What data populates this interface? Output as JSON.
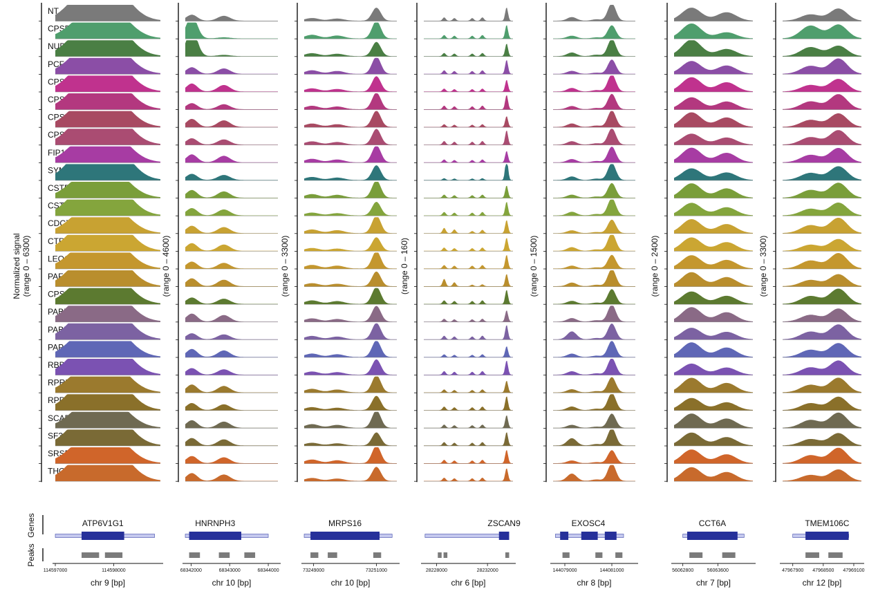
{
  "chart_data": {
    "type": "area",
    "y_label_prefix": "Normalized signal",
    "side_labels": {
      "peaks": "Peaks",
      "genes": "Genes"
    },
    "tracks": [
      {
        "name": "NT",
        "color": "#7a7a7a"
      },
      {
        "name": "CPSF6",
        "color": "#4f9e6d"
      },
      {
        "name": "NUDT21",
        "color": "#4a7f44"
      },
      {
        "name": "PCF11",
        "color": "#8b4ea6"
      },
      {
        "name": "CPSF1",
        "color": "#c0328e"
      },
      {
        "name": "CPSF2",
        "color": "#b3387f"
      },
      {
        "name": "CPSF3",
        "color": "#a84a62"
      },
      {
        "name": "CPSF4",
        "color": "#aa4c72"
      },
      {
        "name": "FIP1L1",
        "color": "#a73ca3"
      },
      {
        "name": "SYMPK",
        "color": "#2e767a"
      },
      {
        "name": "CSTF1",
        "color": "#7a9e3a"
      },
      {
        "name": "CSTF3",
        "color": "#84a53d"
      },
      {
        "name": "CDC73",
        "color": "#c8a232"
      },
      {
        "name": "CTR9",
        "color": "#cba632"
      },
      {
        "name": "LEO1",
        "color": "#c4972e"
      },
      {
        "name": "PAF1",
        "color": "#b98e2d"
      },
      {
        "name": "CPSF3L",
        "color": "#5c7a30"
      },
      {
        "name": "PABPC1",
        "color": "#8a6a86"
      },
      {
        "name": "PABPN1",
        "color": "#7c62a2"
      },
      {
        "name": "PAPOLA",
        "color": "#5f67b6"
      },
      {
        "name": "RBBP6",
        "color": "#7b52b2"
      },
      {
        "name": "RPRD1A",
        "color": "#9b7a2e"
      },
      {
        "name": "RPRD1B",
        "color": "#8a702a"
      },
      {
        "name": "SCAF8",
        "color": "#6f6a52"
      },
      {
        "name": "SF3A1",
        "color": "#7a6a36"
      },
      {
        "name": "SRSF3",
        "color": "#d0652a"
      },
      {
        "name": "THOC5",
        "color": "#c86a2c"
      }
    ],
    "panels": [
      {
        "gene": "ATP6V1G1",
        "range": "(range 0 – 6300)",
        "chr": "chr 9 [bp]",
        "ticks": [
          {
            "v": 114597000,
            "label": "114597000"
          },
          {
            "v": 114598000,
            "label": "114598000"
          }
        ],
        "xlim": [
          114597000,
          114598800
        ],
        "peaks": [
          {
            "x": [
              114597450,
              114597700
            ],
            "h": 1.0,
            "w": 300
          },
          {
            "x": [
              114597850,
              114598050
            ],
            "h": 1.05,
            "w": 300
          }
        ],
        "intron": [
          114597000,
          114598700
        ],
        "exons": [
          [
            114597450,
            114598180
          ]
        ],
        "peak_boxes": [
          [
            114597450,
            114597750
          ],
          [
            114597850,
            114598150
          ]
        ],
        "weights": {
          "CPSF6": [
            0.9,
            1.05
          ],
          "NUDT21": [
            1.0,
            1.0
          ],
          "SYMPK": [
            1.1,
            1.1
          ],
          "THOC5": [
            1.0,
            1.0
          ]
        }
      },
      {
        "gene": "HNRNPH3",
        "range": "(range 0 – 4600)",
        "chr": "chr 10 [bp]",
        "ticks": [
          {
            "v": 68342000,
            "label": "68342000"
          },
          {
            "v": 68343000,
            "label": "68343000"
          },
          {
            "v": 68344000,
            "label": "68344000"
          }
        ],
        "xlim": [
          68341850,
          68344250
        ],
        "peaks": [
          {
            "x": [
              68342020
            ],
            "h": 0.55,
            "w": 140
          },
          {
            "x": [
              68342850
            ],
            "h": 0.45,
            "w": 160
          }
        ],
        "intron": [
          68341850,
          68344000
        ],
        "exons": [
          [
            68341950,
            68343300
          ]
        ],
        "peak_boxes": [
          [
            68341950,
            68342230
          ],
          [
            68342720,
            68343000
          ],
          [
            68343380,
            68343660
          ]
        ],
        "weights": {
          "CPSF6": [
            3.2,
            0.2
          ],
          "NUDT21": [
            3.4,
            0.2
          ],
          "SYMPK": [
            0.9,
            0.9
          ],
          "NT": [
            0.8,
            0.8
          ]
        }
      },
      {
        "gene": "MRPS16",
        "range": "(range 0 – 3300)",
        "chr": "chr 10 [bp]",
        "ticks": [
          {
            "v": 73249000,
            "label": "73249000"
          },
          {
            "v": 73251000,
            "label": "73251000"
          }
        ],
        "xlim": [
          73248700,
          73251650
        ],
        "peaks": [
          {
            "x": [
              73248950
            ],
            "h": 0.25,
            "w": 220
          },
          {
            "x": [
              73249750
            ],
            "h": 0.2,
            "w": 220
          },
          {
            "x": [
              73251000
            ],
            "h": 1.2,
            "w": 140
          }
        ],
        "intron": [
          73248700,
          73251500
        ],
        "exons": [
          [
            73248900,
            73251100
          ]
        ],
        "peak_boxes": [
          [
            73248900,
            73249150
          ],
          [
            73249450,
            73249750
          ],
          [
            73250900,
            73251150
          ]
        ],
        "weights": {}
      },
      {
        "gene": "ZSCAN9",
        "range": "(range 0 – 160)",
        "chr": "chr 6 [bp]",
        "ticks": [
          {
            "v": 28228000,
            "label": "28228000"
          },
          {
            "v": 28232000,
            "label": "28232000"
          }
        ],
        "xlim": [
          28227000,
          28234000
        ],
        "peaks": [
          {
            "x": [
              28228600
            ],
            "h": 0.25,
            "w": 120
          },
          {
            "x": [
              28229400
            ],
            "h": 0.2,
            "w": 120
          },
          {
            "x": [
              28230800
            ],
            "h": 0.2,
            "w": 120
          },
          {
            "x": [
              28231600
            ],
            "h": 0.25,
            "w": 120
          },
          {
            "x": [
              28233500
            ],
            "h": 1.0,
            "w": 110
          }
        ],
        "intron": [
          28227100,
          28233200
        ],
        "exons": [
          [
            28232900,
            28233700
          ]
        ],
        "peak_boxes": [
          [
            28228100,
            28228400
          ],
          [
            28228550,
            28228850
          ],
          [
            28233400,
            28233700
          ]
        ],
        "weights": {
          "SYMPK": [
            0.5,
            0.5,
            0.5,
            0.5,
            1.6
          ],
          "CDC73": [
            1.6,
            1.4,
            0.8,
            1.0,
            1.0
          ],
          "PAF1": [
            2.4,
            1.6,
            0.6,
            0.6,
            1.0
          ]
        }
      },
      {
        "gene": "EXOSC4",
        "range": "(range 0 – 1500)",
        "chr": "chr 8 [bp]",
        "ticks": [
          {
            "v": 144079000,
            "label": "144079000"
          },
          {
            "v": 144081000,
            "label": "144081000"
          }
        ],
        "xlim": [
          144078500,
          144082000
        ],
        "peaks": [
          {
            "x": [
              144079300
            ],
            "h": 0.25,
            "w": 200
          },
          {
            "x": [
              144080350
            ],
            "h": 0.1,
            "w": 200
          },
          {
            "x": [
              144081000
            ],
            "h": 1.2,
            "w": 170
          }
        ],
        "intron": [
          144078600,
          144081500
        ],
        "exons": [
          [
            144078800,
            144079150
          ],
          [
            144079700,
            144080400
          ],
          [
            144080700,
            144081200
          ]
        ],
        "peak_boxes": [
          [
            144078900,
            144079200
          ],
          [
            144080300,
            144080600
          ],
          [
            144081150,
            144081450
          ]
        ],
        "weights": {
          "PABPN1": [
            2.4,
            1.0,
            1.0
          ],
          "SF3A1": [
            2.0,
            1.0,
            1.0
          ],
          "THOC5": [
            2.0,
            1.0,
            1.0
          ]
        }
      },
      {
        "gene": "CCT6A",
        "range": "(range 0 – 2400)",
        "chr": "chr 7 [bp]",
        "ticks": [
          {
            "v": 56062800,
            "label": "56062800"
          },
          {
            "v": 56063600,
            "label": "56063600"
          }
        ],
        "xlim": [
          56062600,
          56064400
        ],
        "peaks": [
          {
            "x": [
              56063000
            ],
            "h": 1.0,
            "w": 220
          },
          {
            "x": [
              56063800
            ],
            "h": 0.65,
            "w": 220
          }
        ],
        "intron": [
          56062800,
          56064200
        ],
        "exons": [
          [
            56062900,
            56064050
          ]
        ],
        "peak_boxes": [
          [
            56062950,
            56063250
          ],
          [
            56063700,
            56064000
          ]
        ],
        "weights": {
          "CPSF6": [
            1.1,
            0.7
          ],
          "NUDT21": [
            1.2,
            0.8
          ]
        }
      },
      {
        "gene": "TMEM106C",
        "range": "(range 0 – 3300)",
        "chr": "chr 12 [bp]",
        "ticks": [
          {
            "v": 47967900,
            "label": "47967900"
          },
          {
            "v": 47968500,
            "label": "47968500"
          },
          {
            "v": 47969100,
            "label": "47969100"
          }
        ],
        "xlim": [
          47967700,
          47969250
        ],
        "peaks": [
          {
            "x": [
              47968250
            ],
            "h": 0.55,
            "w": 190
          },
          {
            "x": [
              47968800
            ],
            "h": 1.05,
            "w": 170
          }
        ],
        "intron": [
          47967900,
          47969000
        ],
        "exons": [
          [
            47968150,
            47969000
          ]
        ],
        "peak_boxes": [
          [
            47968150,
            47968420
          ],
          [
            47968600,
            47968880
          ]
        ],
        "weights": {
          "CPSF6": [
            1.6,
            0.9
          ],
          "NUDT21": [
            1.5,
            0.9
          ]
        }
      }
    ]
  }
}
